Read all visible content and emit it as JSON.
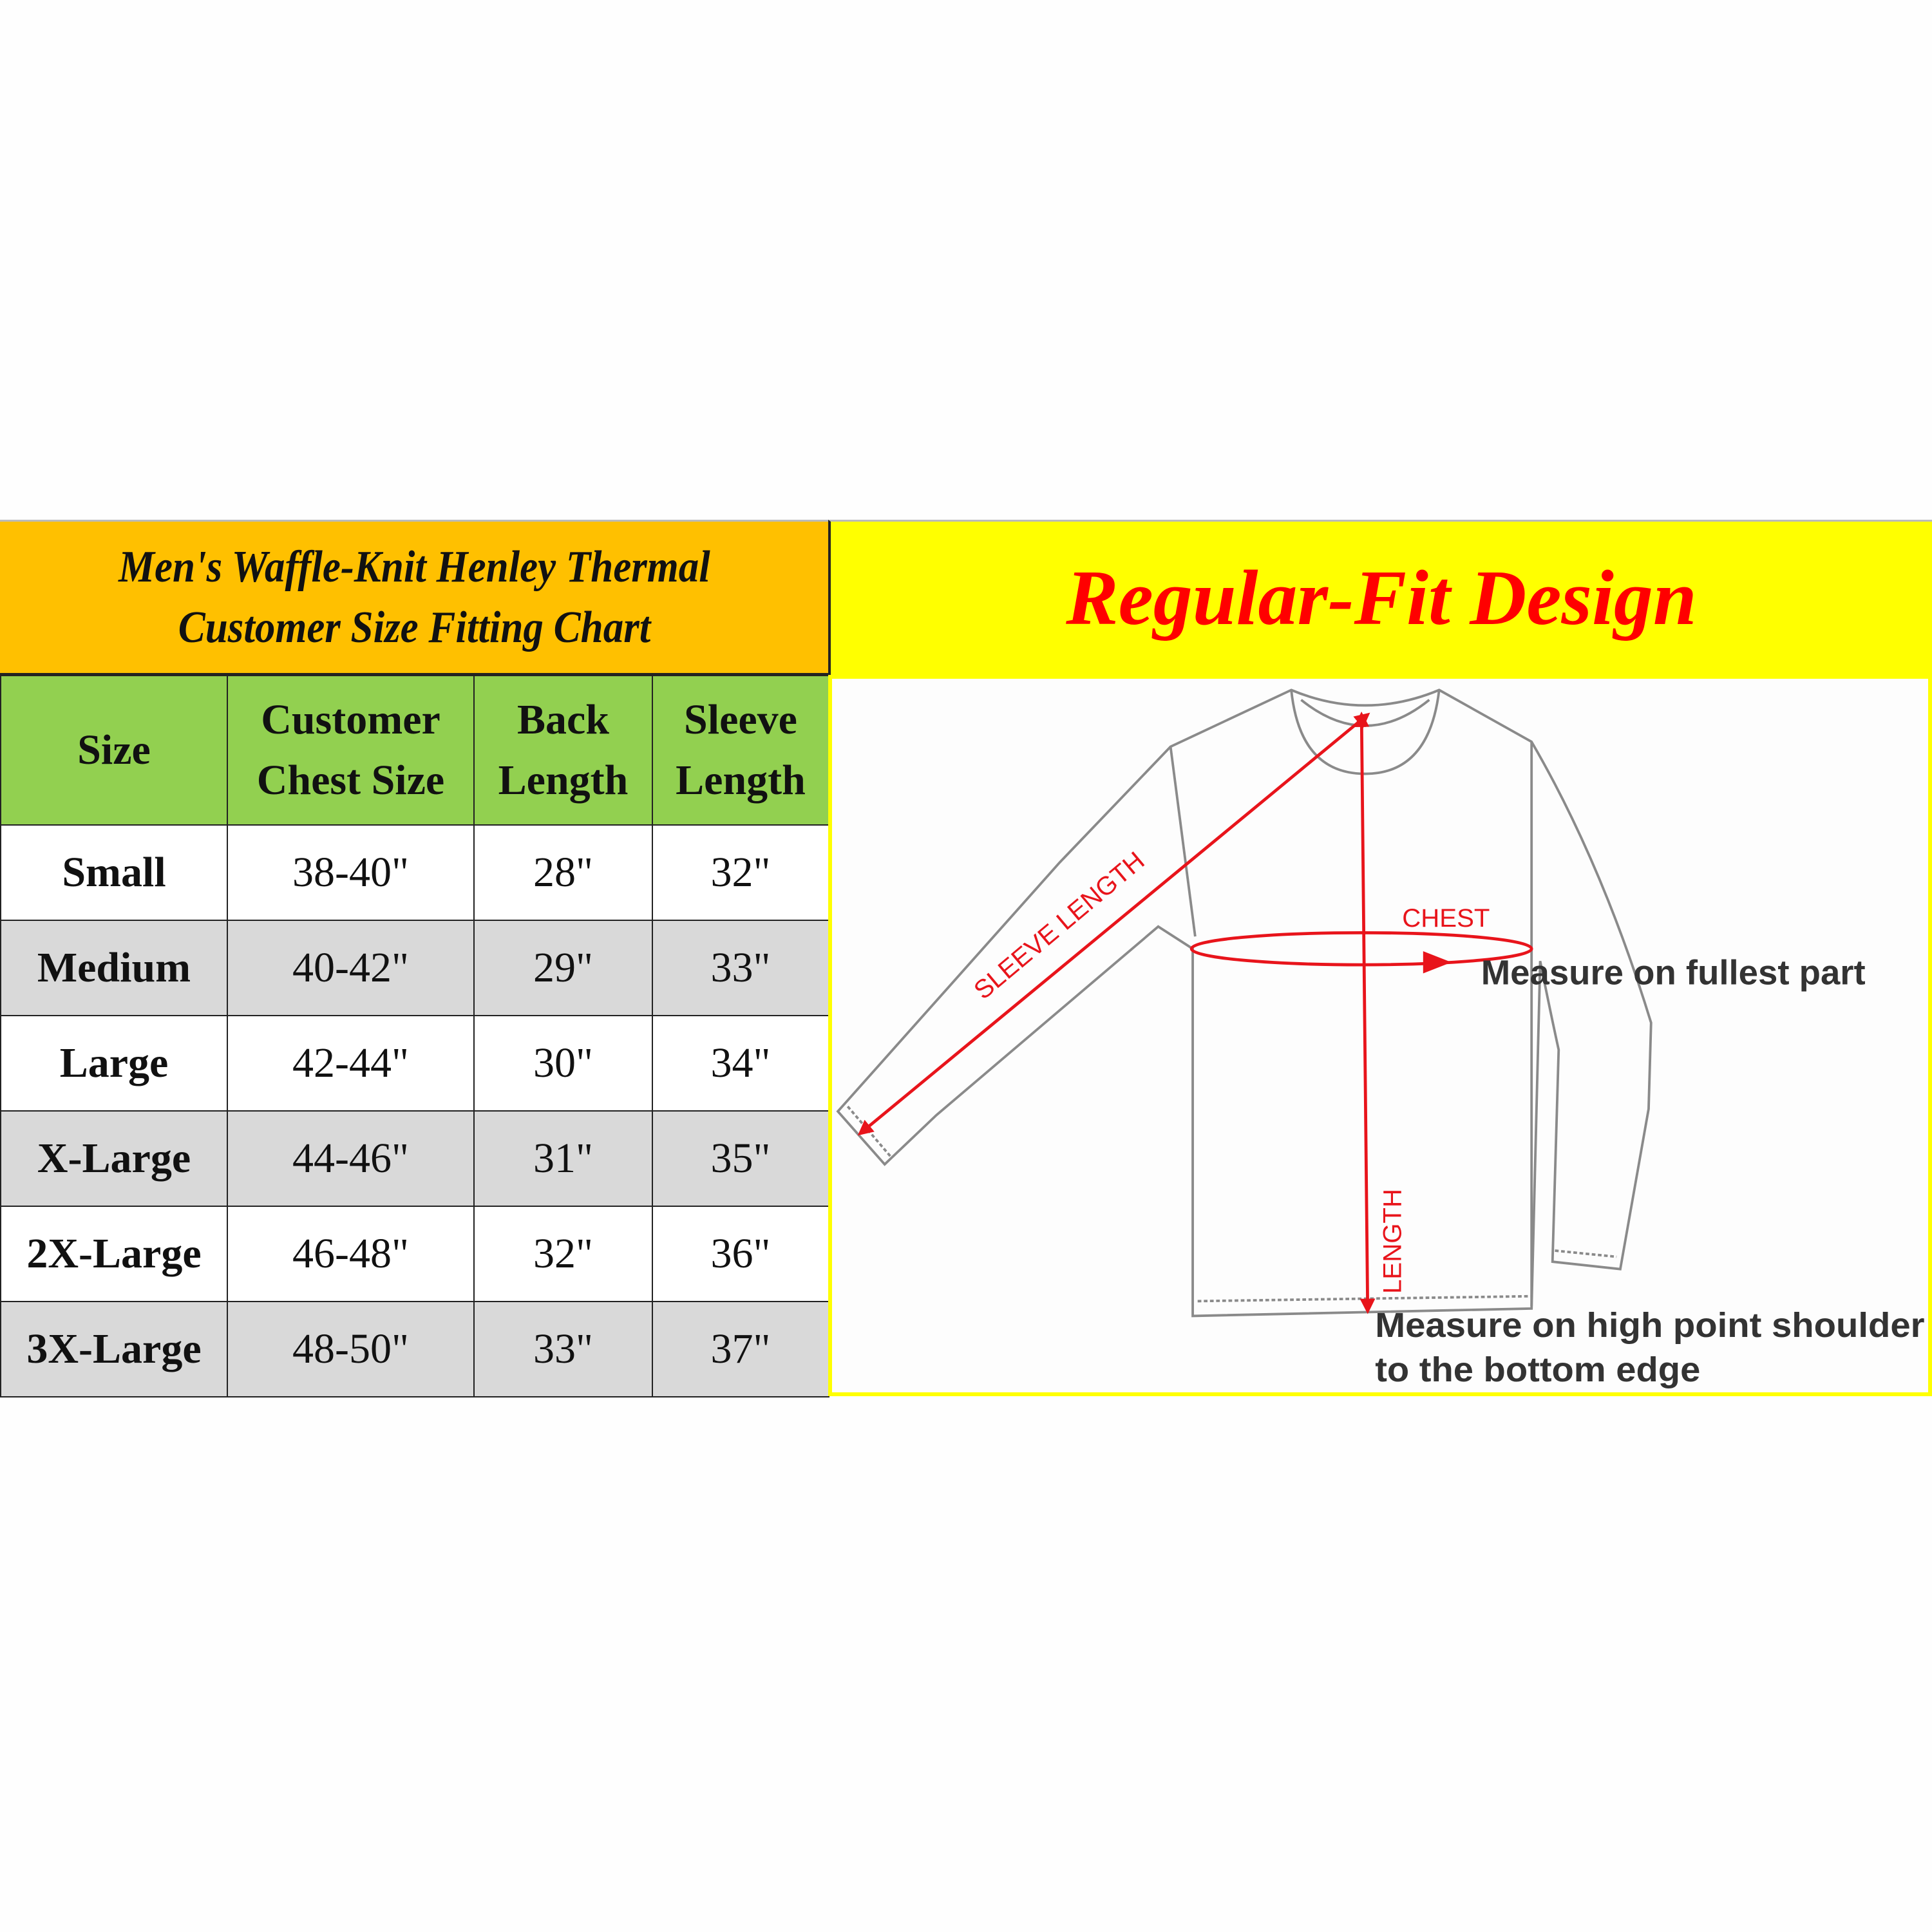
{
  "header": {
    "title_line1": "Men's Waffle-Knit Henley Thermal",
    "title_line2": "Customer Size Fitting Chart",
    "fit_title": "Regular-Fit Design"
  },
  "table": {
    "columns": [
      {
        "line1": "Size",
        "line2": ""
      },
      {
        "line1": "Customer",
        "line2": "Chest Size"
      },
      {
        "line1": "Back",
        "line2": "Length"
      },
      {
        "line1": "Sleeve",
        "line2": "Length"
      }
    ],
    "rows": [
      [
        "Small",
        "38-40\"",
        "28\"",
        "32\""
      ],
      [
        "Medium",
        "40-42\"",
        "29\"",
        "33\""
      ],
      [
        "Large",
        "42-44\"",
        "30\"",
        "34\""
      ],
      [
        "X-Large",
        "44-46\"",
        "31\"",
        "35\""
      ],
      [
        "2X-Large",
        "46-48\"",
        "32\"",
        "36\""
      ],
      [
        "3X-Large",
        "48-50\"",
        "33\"",
        "37\""
      ]
    ]
  },
  "diagram": {
    "sleeve_label": "SLEEVE LENGTH",
    "chest_label": "CHEST",
    "length_label": "LENGTH",
    "chest_note": "Measure on fullest part",
    "length_note_line1": "Measure on high point shoulder",
    "length_note_line2": "to the bottom edge"
  },
  "colors": {
    "title_bg": "#ffc000",
    "fit_bg": "#ffff00",
    "header_bg": "#92d050",
    "alt_row": "#d9d9d9",
    "accent_red": "#ff0000"
  }
}
